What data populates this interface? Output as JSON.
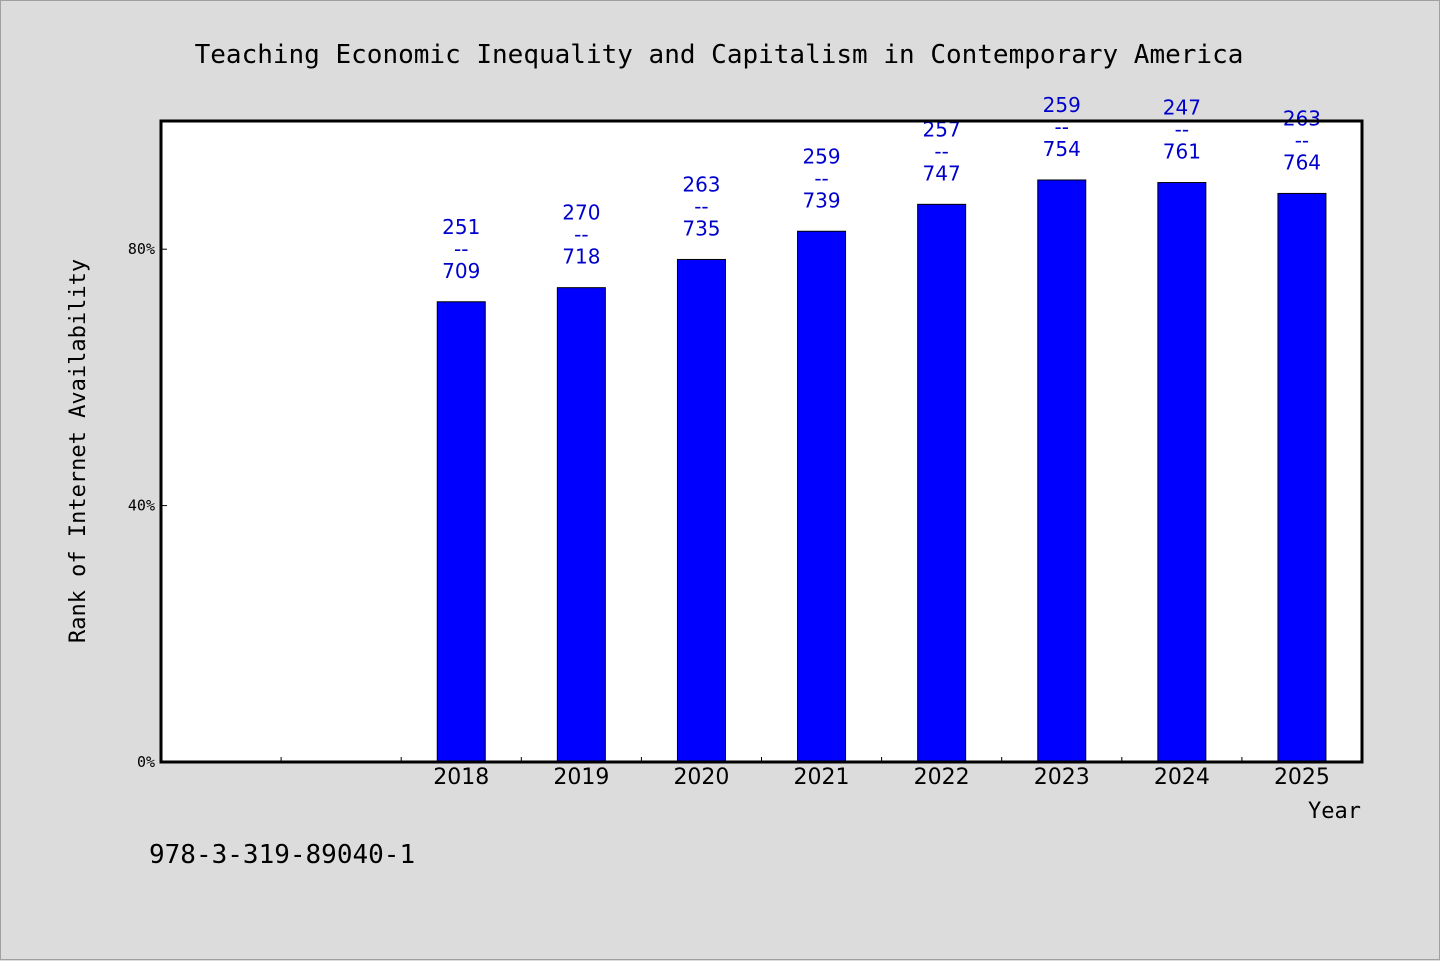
{
  "colors": {
    "background": "#dcdcdc",
    "plot_bg": "#ffffff",
    "bar": "#0000ff",
    "label": "#0000cc"
  },
  "footer": {
    "code": "978-3-319-89040-1"
  },
  "chart_data": {
    "type": "bar",
    "title": "Teaching Economic Inequality and Capitalism in Contemporary America",
    "xlabel": "Year",
    "ylabel": "Rank of Internet Availability",
    "ylim": [
      0,
      100
    ],
    "yticks": [
      {
        "value": 0,
        "label": "0%"
      },
      {
        "value": 40,
        "label": "40%"
      },
      {
        "value": 80,
        "label": "80%"
      }
    ],
    "legend": "none",
    "grid": false,
    "slots": 10,
    "first_bar_slot": 2,
    "categories": [
      "2018",
      "2019",
      "2020",
      "2021",
      "2022",
      "2023",
      "2024",
      "2025"
    ],
    "values": [
      71.8,
      74.0,
      78.4,
      82.8,
      87.0,
      90.8,
      90.4,
      88.7
    ],
    "labels_top": [
      "251",
      "270",
      "263",
      "259",
      "257",
      "259",
      "247",
      "263"
    ],
    "labels_sep": "--",
    "labels_bottom": [
      "709",
      "718",
      "735",
      "739",
      "747",
      "754",
      "761",
      "764"
    ]
  }
}
